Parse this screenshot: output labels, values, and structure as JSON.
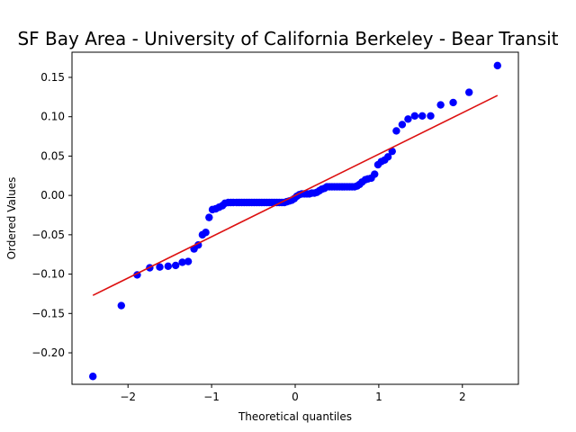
{
  "chart_data": {
    "type": "scatter",
    "title": "SF Bay Area - University of California Berkeley - Bear Transit",
    "xlabel": "Theoretical quantiles",
    "ylabel": "Ordered Values",
    "xlim": [
      -2.67,
      2.67
    ],
    "ylim": [
      -0.24,
      0.182
    ],
    "x_ticks": [
      -2,
      -1,
      0,
      1,
      2
    ],
    "x_tick_labels": [
      "−2",
      "−1",
      "0",
      "1",
      "2"
    ],
    "y_ticks": [
      -0.2,
      -0.15,
      -0.1,
      -0.05,
      0.0,
      0.05,
      0.1,
      0.15
    ],
    "y_tick_labels": [
      "−0.20",
      "−0.15",
      "−0.10",
      "−0.05",
      "0.00",
      "0.05",
      "0.10",
      "0.15"
    ],
    "grid": false,
    "series": [
      {
        "kind": "points",
        "color": "#0000ff",
        "x": [
          -2.42,
          -2.08,
          -1.89,
          -1.74,
          -1.62,
          -1.52,
          -1.43,
          -1.35,
          -1.28,
          -1.21,
          -1.16,
          -1.11,
          -1.07,
          -1.03,
          -0.99,
          -0.95,
          -0.91,
          -0.87,
          -0.84,
          -0.8,
          -0.77,
          -0.74,
          -0.7,
          -0.67,
          -0.64,
          -0.61,
          -0.58,
          -0.55,
          -0.52,
          -0.49,
          -0.46,
          -0.43,
          -0.4,
          -0.37,
          -0.34,
          -0.31,
          -0.28,
          -0.25,
          -0.22,
          -0.19,
          -0.16,
          -0.13,
          -0.1,
          -0.07,
          -0.04,
          -0.01,
          0.02,
          0.05,
          0.08,
          0.11,
          0.14,
          0.17,
          0.2,
          0.23,
          0.26,
          0.29,
          0.32,
          0.35,
          0.38,
          0.41,
          0.44,
          0.47,
          0.5,
          0.53,
          0.56,
          0.59,
          0.62,
          0.65,
          0.68,
          0.71,
          0.74,
          0.77,
          0.8,
          0.84,
          0.87,
          0.91,
          0.95,
          0.99,
          1.03,
          1.07,
          1.11,
          1.16,
          1.21,
          1.28,
          1.35,
          1.43,
          1.52,
          1.62,
          1.74,
          1.89,
          2.08,
          2.42
        ],
        "y": [
          -0.23,
          -0.14,
          -0.101,
          -0.092,
          -0.091,
          -0.09,
          -0.089,
          -0.085,
          -0.084,
          -0.068,
          -0.063,
          -0.05,
          -0.047,
          -0.028,
          -0.018,
          -0.017,
          -0.015,
          -0.013,
          -0.01,
          -0.009,
          -0.009,
          -0.009,
          -0.009,
          -0.009,
          -0.009,
          -0.009,
          -0.009,
          -0.009,
          -0.009,
          -0.009,
          -0.009,
          -0.009,
          -0.009,
          -0.009,
          -0.009,
          -0.009,
          -0.009,
          -0.009,
          -0.009,
          -0.009,
          -0.009,
          -0.009,
          -0.008,
          -0.007,
          -0.006,
          -0.004,
          -0.001,
          0.001,
          0.002,
          0.002,
          0.002,
          0.002,
          0.003,
          0.003,
          0.004,
          0.006,
          0.008,
          0.009,
          0.011,
          0.011,
          0.011,
          0.011,
          0.011,
          0.011,
          0.011,
          0.011,
          0.011,
          0.011,
          0.011,
          0.011,
          0.012,
          0.014,
          0.017,
          0.02,
          0.021,
          0.022,
          0.027,
          0.039,
          0.043,
          0.045,
          0.049,
          0.056,
          0.082,
          0.09,
          0.097,
          0.101,
          0.101,
          0.101,
          0.115,
          0.118,
          0.131,
          0.165
        ]
      },
      {
        "kind": "fit-line",
        "color": "#dd1111",
        "x": [
          -2.42,
          2.42
        ],
        "y": [
          -0.127,
          0.127
        ]
      }
    ]
  }
}
